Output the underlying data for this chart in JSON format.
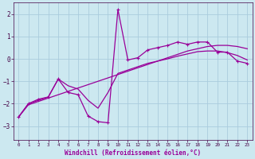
{
  "xlabel": "Windchill (Refroidissement éolien,°C)",
  "background_color": "#cce8f0",
  "grid_color": "#aaccdd",
  "line_color": "#990099",
  "xlim": [
    -0.5,
    23.5
  ],
  "ylim": [
    -3.6,
    2.5
  ],
  "yticks": [
    -3,
    -2,
    -1,
    0,
    1,
    2
  ],
  "xticks": [
    0,
    1,
    2,
    3,
    4,
    5,
    6,
    7,
    8,
    9,
    10,
    11,
    12,
    13,
    14,
    15,
    16,
    17,
    18,
    19,
    20,
    21,
    22,
    23
  ],
  "series": [
    {
      "x": [
        0,
        1,
        2,
        3,
        4,
        5,
        6,
        7,
        8,
        9,
        10,
        11,
        12,
        13,
        14,
        15,
        16,
        17,
        18,
        19,
        20,
        21,
        22,
        23
      ],
      "y": [
        -2.6,
        -2.0,
        -1.8,
        -1.7,
        -0.9,
        -1.5,
        -1.6,
        -2.55,
        -2.8,
        -2.85,
        2.2,
        -0.05,
        0.05,
        0.4,
        0.5,
        0.6,
        0.75,
        0.65,
        0.75,
        0.75,
        0.3,
        0.3,
        -0.1,
        -0.2
      ],
      "marker": "+",
      "markersize": 3.5,
      "linewidth": 0.9
    },
    {
      "x": [
        0,
        1,
        2,
        3,
        4,
        5,
        6,
        7,
        8,
        9,
        10,
        11,
        12,
        13,
        14,
        15,
        16,
        17,
        18,
        19,
        20,
        21,
        22,
        23
      ],
      "y": [
        -2.6,
        -2.05,
        -1.9,
        -1.75,
        -1.6,
        -1.45,
        -1.3,
        -1.15,
        -1.0,
        -0.85,
        -0.7,
        -0.55,
        -0.4,
        -0.25,
        -0.1,
        0.05,
        0.2,
        0.35,
        0.45,
        0.55,
        0.6,
        0.6,
        0.55,
        0.45
      ],
      "marker": null,
      "linewidth": 0.9
    },
    {
      "x": [
        0,
        1,
        2,
        3,
        4,
        5,
        6,
        7,
        8,
        9,
        10,
        11,
        12,
        13,
        14,
        15,
        16,
        17,
        18,
        19,
        20,
        21,
        22,
        23
      ],
      "y": [
        -2.6,
        -2.0,
        -1.85,
        -1.7,
        -0.9,
        -1.2,
        -1.35,
        -1.85,
        -2.2,
        -1.5,
        -0.65,
        -0.5,
        -0.35,
        -0.2,
        -0.1,
        0.0,
        0.12,
        0.22,
        0.32,
        0.35,
        0.35,
        0.28,
        0.15,
        -0.05
      ],
      "marker": null,
      "linewidth": 0.9
    }
  ]
}
